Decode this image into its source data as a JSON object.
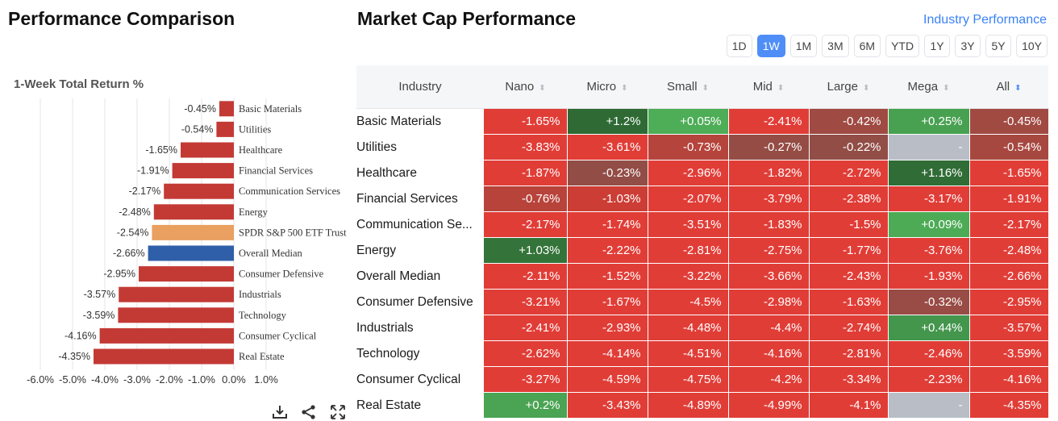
{
  "left_panel": {
    "title": "Performance Comparison"
  },
  "right_panel": {
    "title": "Market Cap Performance",
    "link": "Industry Performance"
  },
  "timeframes": [
    {
      "label": "1D",
      "active": false
    },
    {
      "label": "1W",
      "active": true
    },
    {
      "label": "1M",
      "active": false
    },
    {
      "label": "3M",
      "active": false
    },
    {
      "label": "6M",
      "active": false
    },
    {
      "label": "YTD",
      "active": false
    },
    {
      "label": "1Y",
      "active": false
    },
    {
      "label": "3Y",
      "active": false
    },
    {
      "label": "5Y",
      "active": false
    },
    {
      "label": "10Y",
      "active": false
    }
  ],
  "chart_data": {
    "type": "bar",
    "orientation": "horizontal",
    "title": "1-Week Total Return %",
    "categories": [
      "Basic Materials",
      "Utilities",
      "Healthcare",
      "Financial Services",
      "Communication Services",
      "Energy",
      "SPDR S&P 500 ETF Trust",
      "Overall Median",
      "Consumer Defensive",
      "Industrials",
      "Technology",
      "Consumer Cyclical",
      "Real Estate"
    ],
    "values": [
      -0.45,
      -0.54,
      -1.65,
      -1.91,
      -2.17,
      -2.48,
      -2.54,
      -2.66,
      -2.95,
      -3.57,
      -3.59,
      -4.16,
      -4.35
    ],
    "value_labels": [
      "-0.45%",
      "-0.54%",
      "-1.65%",
      "-1.91%",
      "-2.17%",
      "-2.48%",
      "-2.54%",
      "-2.66%",
      "-2.95%",
      "-3.57%",
      "-3.59%",
      "-4.16%",
      "-4.35%"
    ],
    "bar_colors": [
      "#c33a35",
      "#c33a35",
      "#c33a35",
      "#c33a35",
      "#c33a35",
      "#c33a35",
      "#e9a060",
      "#2f5fa8",
      "#c33a35",
      "#c33a35",
      "#c33a35",
      "#c33a35",
      "#c33a35"
    ],
    "xlim": [
      -6.0,
      1.0
    ],
    "xticks": [
      "-6.0%",
      "-5.0%",
      "-4.0%",
      "-3.0%",
      "-2.0%",
      "-1.0%",
      "0.0%",
      "1.0%"
    ],
    "grid": true
  },
  "table": {
    "headers": [
      "Industry",
      "Nano",
      "Micro",
      "Small",
      "Mid",
      "Large",
      "Mega",
      "All"
    ],
    "sorted_column": "All",
    "rows": [
      {
        "industry": "Basic Materials",
        "values": [
          "-1.65%",
          "+1.2%",
          "+0.05%",
          "-2.41%",
          "-0.42%",
          "+0.25%",
          "-0.45%"
        ]
      },
      {
        "industry": "Utilities",
        "values": [
          "-3.83%",
          "-3.61%",
          "-0.73%",
          "-0.27%",
          "-0.22%",
          "-",
          "-0.54%"
        ]
      },
      {
        "industry": "Healthcare",
        "values": [
          "-1.87%",
          "-0.23%",
          "-2.96%",
          "-1.82%",
          "-2.72%",
          "+1.16%",
          "-1.65%"
        ]
      },
      {
        "industry": "Financial Services",
        "values": [
          "-0.76%",
          "-1.03%",
          "-2.07%",
          "-3.79%",
          "-2.38%",
          "-3.17%",
          "-1.91%"
        ]
      },
      {
        "industry": "Communication Se...",
        "values": [
          "-2.17%",
          "-1.74%",
          "-3.51%",
          "-1.83%",
          "-1.5%",
          "+0.09%",
          "-2.17%"
        ]
      },
      {
        "industry": "Energy",
        "values": [
          "+1.03%",
          "-2.22%",
          "-2.81%",
          "-2.75%",
          "-1.77%",
          "-3.76%",
          "-2.48%"
        ]
      },
      {
        "industry": "Overall Median",
        "values": [
          "-2.11%",
          "-1.52%",
          "-3.22%",
          "-3.66%",
          "-2.43%",
          "-1.93%",
          "-2.66%"
        ]
      },
      {
        "industry": "Consumer Defensive",
        "values": [
          "-3.21%",
          "-1.67%",
          "-4.5%",
          "-2.98%",
          "-1.63%",
          "-0.32%",
          "-2.95%"
        ]
      },
      {
        "industry": "Industrials",
        "values": [
          "-2.41%",
          "-2.93%",
          "-4.48%",
          "-4.4%",
          "-2.74%",
          "+0.44%",
          "-3.57%"
        ]
      },
      {
        "industry": "Technology",
        "values": [
          "-2.62%",
          "-4.14%",
          "-4.51%",
          "-4.16%",
          "-2.81%",
          "-2.46%",
          "-3.59%"
        ]
      },
      {
        "industry": "Consumer Cyclical",
        "values": [
          "-3.27%",
          "-4.59%",
          "-4.75%",
          "-4.2%",
          "-3.34%",
          "-2.23%",
          "-4.16%"
        ]
      },
      {
        "industry": "Real Estate",
        "values": [
          "+0.2%",
          "-3.43%",
          "-4.89%",
          "-4.99%",
          "-4.1%",
          "-",
          "-4.35%"
        ]
      }
    ]
  },
  "icons": [
    "download-icon",
    "share-icon",
    "expand-icon"
  ]
}
